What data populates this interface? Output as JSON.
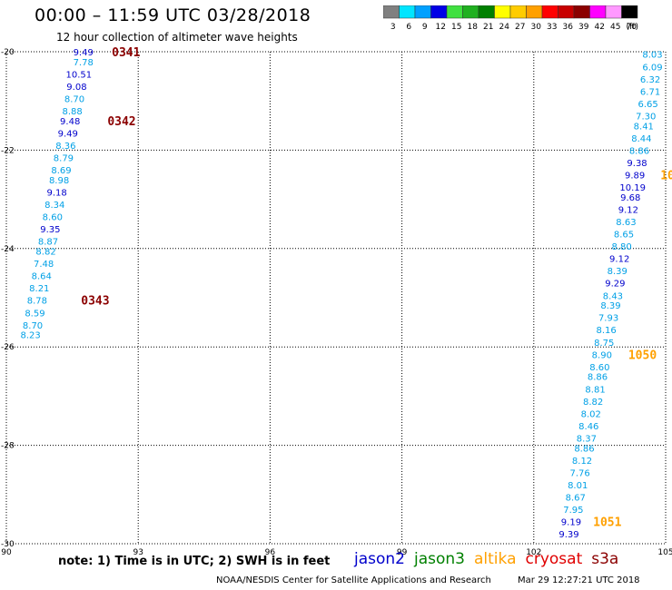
{
  "title": "00:00 – 11:59 UTC 03/28/2018",
  "subtitle": "12 hour collection of altimeter wave heights",
  "scale": {
    "labels": [
      "3",
      "6",
      "9",
      "12",
      "15",
      "18",
      "21",
      "24",
      "27",
      "30",
      "33",
      "36",
      "39",
      "42",
      "45",
      "70"
    ],
    "unit": "(ft)",
    "colors": [
      "#808080",
      "#00e5ff",
      "#00a0ff",
      "#0000e6",
      "#40e040",
      "#20b020",
      "#008000",
      "#ffff00",
      "#ffcc00",
      "#ffa000",
      "#ff0000",
      "#c80000",
      "#8b0000",
      "#ff00ff",
      "#ff99ff",
      "#000000"
    ]
  },
  "note": "note: 1) Time is in UTC; 2) SWH is in feet",
  "legend": [
    {
      "name": "jason2",
      "color": "#0000cc"
    },
    {
      "name": "jason3",
      "color": "#008000"
    },
    {
      "name": "altika",
      "color": "#ffa000"
    },
    {
      "name": "cryosat",
      "color": "#e00000"
    },
    {
      "name": "s3a",
      "color": "#8b0000"
    }
  ],
  "footer": {
    "org": "NOAA/NESDIS Center for Satellite Applications and Research",
    "timestamp": "Mar 29 12:27:21 UTC 2018"
  },
  "chart_data": {
    "type": "scatter",
    "xlim": [
      90,
      105
    ],
    "ylim": [
      -30,
      -20
    ],
    "xticks": [
      "90",
      "93",
      "96",
      "99",
      "102",
      "105"
    ],
    "yticks": [
      "-20",
      "-22",
      "-24",
      "-26",
      "-28",
      "-30"
    ],
    "points": [
      {
        "x": 91.75,
        "y": -20.0,
        "v": "9.49",
        "c": "#0000cc"
      },
      {
        "x": 91.75,
        "y": -20.2,
        "v": "7.78",
        "c": "#00a0e6"
      },
      {
        "x": 91.65,
        "y": -20.45,
        "v": "10.51",
        "c": "#0000cc"
      },
      {
        "x": 91.6,
        "y": -20.7,
        "v": "9.08",
        "c": "#0000cc"
      },
      {
        "x": 91.55,
        "y": -20.95,
        "v": "8.70",
        "c": "#00a0e6"
      },
      {
        "x": 91.5,
        "y": -21.2,
        "v": "8.88",
        "c": "#00a0e6"
      },
      {
        "x": 91.45,
        "y": -21.4,
        "v": "9.48",
        "c": "#0000cc"
      },
      {
        "x": 91.4,
        "y": -21.65,
        "v": "9.49",
        "c": "#0000cc"
      },
      {
        "x": 91.35,
        "y": -21.9,
        "v": "8.36",
        "c": "#00a0e6"
      },
      {
        "x": 91.3,
        "y": -22.15,
        "v": "8.79",
        "c": "#00a0e6"
      },
      {
        "x": 91.25,
        "y": -22.4,
        "v": "8.69",
        "c": "#00a0e6"
      },
      {
        "x": 91.2,
        "y": -22.6,
        "v": "8.98",
        "c": "#00a0e6"
      },
      {
        "x": 91.15,
        "y": -22.85,
        "v": "9.18",
        "c": "#0000cc"
      },
      {
        "x": 91.1,
        "y": -23.1,
        "v": "8.34",
        "c": "#00a0e6"
      },
      {
        "x": 91.05,
        "y": -23.35,
        "v": "8.60",
        "c": "#00a0e6"
      },
      {
        "x": 91.0,
        "y": -23.6,
        "v": "9.35",
        "c": "#0000cc"
      },
      {
        "x": 90.95,
        "y": -23.85,
        "v": "8.87",
        "c": "#00a0e6"
      },
      {
        "x": 90.9,
        "y": -24.05,
        "v": "8.82",
        "c": "#00a0e6"
      },
      {
        "x": 90.85,
        "y": -24.3,
        "v": "7.48",
        "c": "#00a0e6"
      },
      {
        "x": 90.8,
        "y": -24.55,
        "v": "8.64",
        "c": "#00a0e6"
      },
      {
        "x": 90.75,
        "y": -24.8,
        "v": "8.21",
        "c": "#00a0e6"
      },
      {
        "x": 90.7,
        "y": -25.05,
        "v": "8.78",
        "c": "#00a0e6"
      },
      {
        "x": 90.65,
        "y": -25.3,
        "v": "8.59",
        "c": "#00a0e6"
      },
      {
        "x": 90.6,
        "y": -25.55,
        "v": "8.70",
        "c": "#00a0e6"
      },
      {
        "x": 90.55,
        "y": -25.75,
        "v": "8.23",
        "c": "#00a0e6"
      },
      {
        "x": 104.7,
        "y": -20.05,
        "v": "8.03",
        "c": "#00a0e6"
      },
      {
        "x": 104.7,
        "y": -20.3,
        "v": "6.09",
        "c": "#00a0e6"
      },
      {
        "x": 104.65,
        "y": -20.55,
        "v": "6.32",
        "c": "#00a0e6"
      },
      {
        "x": 104.65,
        "y": -20.8,
        "v": "6.71",
        "c": "#00a0e6"
      },
      {
        "x": 104.6,
        "y": -21.05,
        "v": "6.65",
        "c": "#00a0e6"
      },
      {
        "x": 104.55,
        "y": -21.3,
        "v": "7.30",
        "c": "#00a0e6"
      },
      {
        "x": 104.5,
        "y": -21.5,
        "v": "8.41",
        "c": "#00a0e6"
      },
      {
        "x": 104.45,
        "y": -21.75,
        "v": "8.44",
        "c": "#00a0e6"
      },
      {
        "x": 104.4,
        "y": -22.0,
        "v": "8.86",
        "c": "#00a0e6"
      },
      {
        "x": 104.35,
        "y": -22.25,
        "v": "9.38",
        "c": "#0000cc"
      },
      {
        "x": 104.3,
        "y": -22.5,
        "v": "9.89",
        "c": "#0000cc"
      },
      {
        "x": 104.25,
        "y": -22.75,
        "v": "10.19",
        "c": "#0000cc"
      },
      {
        "x": 104.2,
        "y": -22.95,
        "v": "9.68",
        "c": "#0000cc"
      },
      {
        "x": 104.15,
        "y": -23.2,
        "v": "9.12",
        "c": "#0000cc"
      },
      {
        "x": 104.1,
        "y": -23.45,
        "v": "8.63",
        "c": "#00a0e6"
      },
      {
        "x": 104.05,
        "y": -23.7,
        "v": "8.65",
        "c": "#00a0e6"
      },
      {
        "x": 104.0,
        "y": -23.95,
        "v": "8.80",
        "c": "#00a0e6"
      },
      {
        "x": 103.95,
        "y": -24.2,
        "v": "9.12",
        "c": "#0000cc"
      },
      {
        "x": 103.9,
        "y": -24.45,
        "v": "8.39",
        "c": "#00a0e6"
      },
      {
        "x": 103.85,
        "y": -24.7,
        "v": "9.29",
        "c": "#0000cc"
      },
      {
        "x": 103.8,
        "y": -24.95,
        "v": "8.43",
        "c": "#00a0e6"
      },
      {
        "x": 103.75,
        "y": -25.15,
        "v": "8.39",
        "c": "#00a0e6"
      },
      {
        "x": 103.7,
        "y": -25.4,
        "v": "7.93",
        "c": "#00a0e6"
      },
      {
        "x": 103.65,
        "y": -25.65,
        "v": "8.16",
        "c": "#00a0e6"
      },
      {
        "x": 103.6,
        "y": -25.9,
        "v": "8.75",
        "c": "#00a0e6"
      },
      {
        "x": 103.55,
        "y": -26.15,
        "v": "8.90",
        "c": "#00a0e6"
      },
      {
        "x": 103.5,
        "y": -26.4,
        "v": "8.60",
        "c": "#00a0e6"
      },
      {
        "x": 103.45,
        "y": -26.6,
        "v": "8.86",
        "c": "#00a0e6"
      },
      {
        "x": 103.4,
        "y": -26.85,
        "v": "8.81",
        "c": "#00a0e6"
      },
      {
        "x": 103.35,
        "y": -27.1,
        "v": "8.82",
        "c": "#00a0e6"
      },
      {
        "x": 103.3,
        "y": -27.35,
        "v": "8.02",
        "c": "#00a0e6"
      },
      {
        "x": 103.25,
        "y": -27.6,
        "v": "8.46",
        "c": "#00a0e6"
      },
      {
        "x": 103.2,
        "y": -27.85,
        "v": "8.37",
        "c": "#00a0e6"
      },
      {
        "x": 103.15,
        "y": -28.05,
        "v": "8.86",
        "c": "#00a0e6"
      },
      {
        "x": 103.1,
        "y": -28.3,
        "v": "8.12",
        "c": "#00a0e6"
      },
      {
        "x": 103.05,
        "y": -28.55,
        "v": "7.76",
        "c": "#00a0e6"
      },
      {
        "x": 103.0,
        "y": -28.8,
        "v": "8.01",
        "c": "#00a0e6"
      },
      {
        "x": 102.95,
        "y": -29.05,
        "v": "8.67",
        "c": "#00a0e6"
      },
      {
        "x": 102.9,
        "y": -29.3,
        "v": "7.95",
        "c": "#00a0e6"
      },
      {
        "x": 102.85,
        "y": -29.55,
        "v": "9.19",
        "c": "#0000cc"
      },
      {
        "x": 102.8,
        "y": -29.8,
        "v": "9.39",
        "c": "#0000cc"
      }
    ],
    "passes": [
      {
        "x": 92.4,
        "y": -20.0,
        "t": "0341",
        "c": "#8b0000"
      },
      {
        "x": 92.3,
        "y": -21.4,
        "t": "0342",
        "c": "#8b0000"
      },
      {
        "x": 91.7,
        "y": -25.05,
        "t": "0343",
        "c": "#8b0000"
      },
      {
        "x": 104.88,
        "y": -22.5,
        "t": "10",
        "c": "#ffa000"
      },
      {
        "x": 104.15,
        "y": -26.15,
        "t": "1050",
        "c": "#ffa000"
      },
      {
        "x": 103.35,
        "y": -29.55,
        "t": "1051",
        "c": "#ffa000"
      }
    ]
  }
}
